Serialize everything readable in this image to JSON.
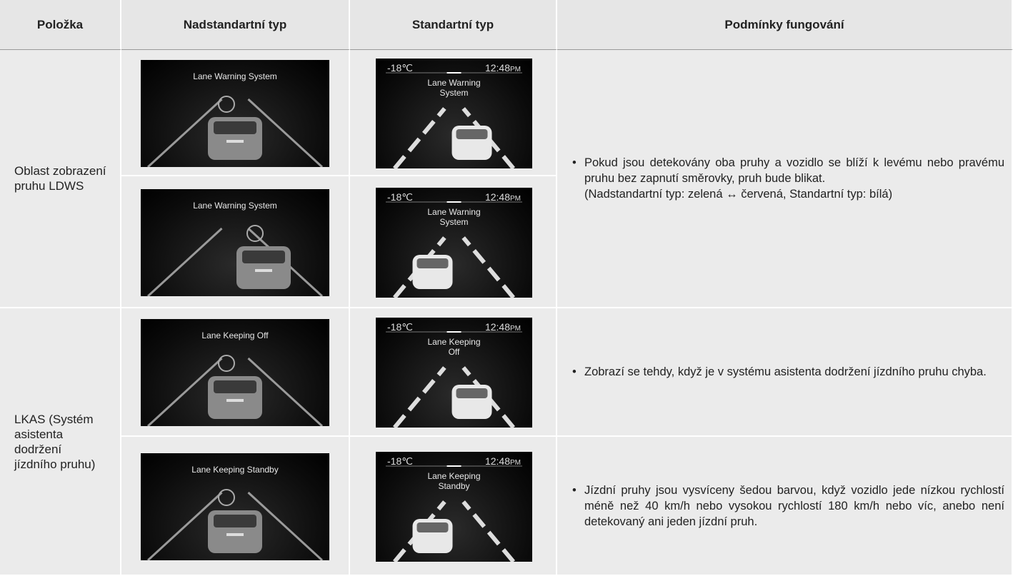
{
  "header": [
    "Položka",
    "Nadstandartní typ",
    "Standartní typ",
    "Podmínky fungování"
  ],
  "rows": [
    {
      "item": "Oblast zobrazení pruhu LDWS",
      "displays": [
        {
          "premium": "Lane Warning System",
          "standard": {
            "temperature": "-18℃",
            "time": "12:48",
            "period": "PM",
            "message": "Lane Warning System"
          }
        },
        {
          "premium": "Lane Warning System",
          "standard": {
            "temperature": "-18℃",
            "time": "12:48",
            "period": "PM",
            "message": "Lane Warning System"
          }
        }
      ],
      "conditions": [
        {
          "text": "Pokud jsou detekovány oba pruhy a vozidlo se blíží k levému nebo pravému pruhu bez zapnutí směrovky, pruh bude blikat.",
          "note": "(Nadstandartní typ: zelená ↔ červená, Standartní typ: bílá)"
        }
      ]
    },
    {
      "item": "LKAS (Systém asistenta dodržení jízdního pruhu)",
      "displays": [
        {
          "premium": "Lane Keeping Off",
          "standard": {
            "temperature": "-18℃",
            "time": "12:48",
            "period": "PM",
            "message": "Lane Keeping Off"
          }
        },
        {
          "premium": "Lane Keeping Standby",
          "standard": {
            "temperature": "-18℃",
            "time": "12:48",
            "period": "PM",
            "message": "Lane Keeping Standby"
          }
        }
      ],
      "conditions": [
        {
          "text": "Zobrazí se tehdy, když je v systému asistenta dodržení jízdního pruhu chyba."
        },
        {
          "text": "Jízdní pruhy jsou vysvíceny šedou barvou, když vozidlo jede nízkou rychlostí méně než 40 km/h nebo vysokou rychlostí 180 km/h nebo víc, anebo není detekovaný ani jeden jízdní pruh."
        }
      ]
    }
  ]
}
